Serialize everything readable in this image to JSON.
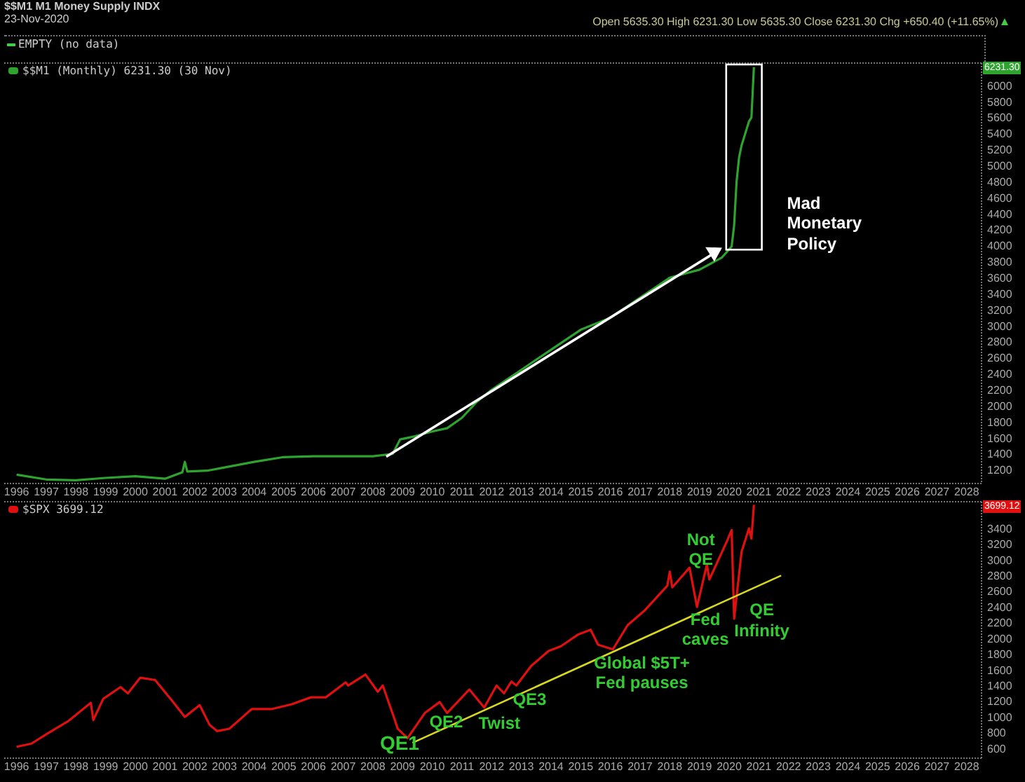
{
  "chart_data": [
    {
      "type": "other",
      "title": "$$M1 M1 Money Supply INDX",
      "subtitle": "23-Nov-2020",
      "annotations": [
        "Open 5635.30 High 6231.30 Low 5635.30 Close 6231.30 Chg +650.40 (+11.65%)",
        "EMPTY (no data)"
      ]
    },
    {
      "type": "line",
      "legend": "top left",
      "xlim": [
        "1995-08",
        "2028-07"
      ],
      "xticks": [
        "1996",
        "1997",
        "1998",
        "1999",
        "2000",
        "2001",
        "2002",
        "2003",
        "2004",
        "2005",
        "2006",
        "2007",
        "2008",
        "2009",
        "2010",
        "2011",
        "2012",
        "2013",
        "2014",
        "2015",
        "2016",
        "2017",
        "2018",
        "2019",
        "2020",
        "2021",
        "2022",
        "2023",
        "2024",
        "2025",
        "2026",
        "2027",
        "2028"
      ],
      "ylim": [
        1030,
        6280
      ],
      "yticks": [
        1200,
        1400,
        1600,
        1800,
        2000,
        2200,
        2400,
        2600,
        2800,
        3000,
        3200,
        3400,
        3600,
        3800,
        4000,
        4200,
        4400,
        4600,
        4800,
        5000,
        5200,
        5400,
        5600,
        5800,
        6000
      ],
      "series": [
        {
          "name": "$$M1 (Monthly) 6231.30 (30 Nov)",
          "color": "#2fa32f",
          "x": [
            "1996-01",
            "1997-01",
            "1998-01",
            "1999-01",
            "2000-01",
            "2001-01",
            "2001-08",
            "2001-09",
            "2001-10",
            "2002-06",
            "2003-01",
            "2004-01",
            "2005-01",
            "2006-01",
            "2007-01",
            "2008-01",
            "2008-09",
            "2008-12",
            "2009-06",
            "2010-01",
            "2010-07",
            "2011-01",
            "2011-07",
            "2012-01",
            "2013-01",
            "2014-01",
            "2015-01",
            "2016-01",
            "2017-01",
            "2018-01",
            "2019-01",
            "2019-10",
            "2020-02",
            "2020-03",
            "2020-04",
            "2020-05",
            "2020-06",
            "2020-07",
            "2020-08",
            "2020-09",
            "2020-10",
            "2020-11"
          ],
          "values": [
            1140,
            1080,
            1070,
            1100,
            1120,
            1090,
            1170,
            1300,
            1180,
            1190,
            1230,
            1300,
            1360,
            1370,
            1370,
            1370,
            1400,
            1580,
            1620,
            1680,
            1720,
            1850,
            2050,
            2200,
            2450,
            2700,
            2950,
            3100,
            3350,
            3600,
            3700,
            3850,
            3990,
            4250,
            4800,
            5100,
            5250,
            5350,
            5450,
            5550,
            5600,
            6230
          ]
        }
      ],
      "annotations": [
        "Mad Monetary Policy",
        "6231.30"
      ]
    },
    {
      "type": "line",
      "legend": "top left",
      "xlim": [
        "1995-08",
        "2028-07"
      ],
      "xticks": [
        "1996",
        "1997",
        "1998",
        "1999",
        "2000",
        "2001",
        "2002",
        "2003",
        "2004",
        "2005",
        "2006",
        "2007",
        "2008",
        "2009",
        "2010",
        "2011",
        "2012",
        "2013",
        "2014",
        "2015",
        "2016",
        "2017",
        "2018",
        "2019",
        "2020",
        "2021",
        "2022",
        "2023",
        "2024",
        "2025",
        "2026",
        "2027",
        "2028"
      ],
      "ylim": [
        475,
        3740
      ],
      "yticks": [
        600,
        800,
        1000,
        1200,
        1400,
        1600,
        1800,
        2000,
        2200,
        2400,
        2600,
        2800,
        3000,
        3200,
        3400
      ],
      "series": [
        {
          "name": "$SPX 3699.12",
          "color": "#e01010",
          "x": [
            "1996-01",
            "1996-07",
            "1997-01",
            "1997-10",
            "1998-07",
            "1998-08",
            "1998-12",
            "1999-07",
            "1999-10",
            "2000-03",
            "2000-09",
            "2001-04",
            "2001-09",
            "2002-03",
            "2002-07",
            "2002-10",
            "2003-03",
            "2003-12",
            "2004-08",
            "2005-04",
            "2005-12",
            "2006-06",
            "2007-02",
            "2007-03",
            "2007-10",
            "2008-03",
            "2008-05",
            "2008-10",
            "2008-11",
            "2009-03",
            "2009-10",
            "2010-04",
            "2010-07",
            "2011-04",
            "2011-10",
            "2012-03",
            "2012-06",
            "2012-09",
            "2012-11",
            "2013-05",
            "2013-12",
            "2014-05",
            "2014-12",
            "2015-05",
            "2015-08",
            "2016-02",
            "2016-08",
            "2017-03",
            "2017-12",
            "2018-01",
            "2018-02",
            "2018-09",
            "2018-12",
            "2019-04",
            "2019-05",
            "2019-12",
            "2020-02",
            "2020-03",
            "2020-06",
            "2020-09",
            "2020-10",
            "2020-11"
          ],
          "values": [
            620,
            660,
            780,
            950,
            1180,
            960,
            1230,
            1380,
            1300,
            1500,
            1470,
            1200,
            1000,
            1150,
            900,
            820,
            850,
            1100,
            1100,
            1160,
            1250,
            1250,
            1440,
            1400,
            1540,
            1320,
            1400,
            950,
            850,
            730,
            1050,
            1190,
            1050,
            1350,
            1120,
            1400,
            1300,
            1450,
            1400,
            1650,
            1840,
            1900,
            2050,
            2110,
            1920,
            1860,
            2170,
            2360,
            2670,
            2850,
            2650,
            2900,
            2400,
            2940,
            2750,
            3230,
            3380,
            2250,
            3100,
            3400,
            3270,
            3700
          ]
        },
        {
          "type": "line",
          "color": "#d8d820",
          "x": [
            "2009-05",
            "2021-10"
          ],
          "values": [
            670,
            2800
          ]
        }
      ],
      "annotations": [
        "QE1",
        "QE2",
        "Twist",
        "QE3",
        "Global $5T+ Fed pauses",
        "Fed caves",
        "Not QE",
        "QE Infinity",
        "3699.12"
      ]
    }
  ]
}
